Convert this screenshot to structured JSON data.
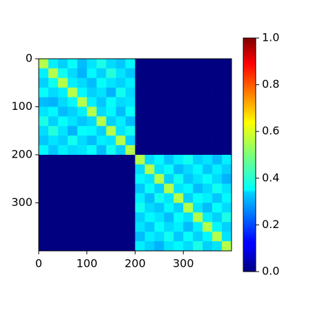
{
  "chart_data": {
    "type": "heatmap",
    "xlim": [
      0,
      400
    ],
    "ylim": [
      400,
      0
    ],
    "xticks": [
      0,
      100,
      200,
      300
    ],
    "yticks": [
      0,
      100,
      200,
      300
    ],
    "colormap": "jet",
    "clim": [
      0,
      1
    ],
    "cticks": [
      {
        "value": 0,
        "label": "0.0"
      },
      0.2,
      0.4,
      0.6,
      0.8,
      {
        "value": 1,
        "label": "1.0"
      }
    ],
    "z": [
      [
        0.55,
        0.36,
        0.33,
        0.38,
        0.31,
        0.35,
        0.4,
        0.34,
        0.32,
        0.37,
        0,
        0,
        0,
        0,
        0,
        0,
        0,
        0,
        0,
        0
      ],
      [
        0.36,
        0.55,
        0.39,
        0.34,
        0.3,
        0.37,
        0.33,
        0.41,
        0.35,
        0.32,
        0,
        0,
        0,
        0,
        0,
        0,
        0,
        0,
        0,
        0
      ],
      [
        0.33,
        0.39,
        0.55,
        0.36,
        0.34,
        0.31,
        0.38,
        0.35,
        0.33,
        0.36,
        0,
        0,
        0,
        0,
        0,
        0,
        0,
        0,
        0,
        0
      ],
      [
        0.38,
        0.34,
        0.36,
        0.55,
        0.37,
        0.33,
        0.35,
        0.3,
        0.39,
        0.34,
        0,
        0,
        0,
        0,
        0,
        0,
        0,
        0,
        0,
        0
      ],
      [
        0.31,
        0.3,
        0.34,
        0.37,
        0.55,
        0.36,
        0.32,
        0.38,
        0.34,
        0.35,
        0,
        0,
        0,
        0,
        0,
        0,
        0,
        0,
        0,
        0
      ],
      [
        0.35,
        0.37,
        0.31,
        0.33,
        0.36,
        0.55,
        0.34,
        0.37,
        0.31,
        0.38,
        0,
        0,
        0,
        0,
        0,
        0,
        0,
        0,
        0,
        0
      ],
      [
        0.4,
        0.33,
        0.38,
        0.35,
        0.32,
        0.34,
        0.55,
        0.33,
        0.36,
        0.31,
        0,
        0,
        0,
        0,
        0,
        0,
        0,
        0,
        0,
        0
      ],
      [
        0.34,
        0.41,
        0.35,
        0.3,
        0.38,
        0.37,
        0.33,
        0.55,
        0.35,
        0.39,
        0,
        0,
        0,
        0,
        0,
        0,
        0,
        0,
        0,
        0
      ],
      [
        0.32,
        0.35,
        0.33,
        0.39,
        0.34,
        0.31,
        0.36,
        0.35,
        0.55,
        0.33,
        0,
        0,
        0,
        0,
        0,
        0,
        0,
        0,
        0,
        0
      ],
      [
        0.37,
        0.32,
        0.36,
        0.34,
        0.35,
        0.38,
        0.31,
        0.39,
        0.33,
        0.55,
        0,
        0,
        0,
        0,
        0,
        0,
        0,
        0,
        0,
        0
      ],
      [
        0,
        0,
        0,
        0,
        0,
        0,
        0,
        0,
        0,
        0,
        0.55,
        0.34,
        0.37,
        0.32,
        0.36,
        0.39,
        0.33,
        0.35,
        0.31,
        0.36
      ],
      [
        0,
        0,
        0,
        0,
        0,
        0,
        0,
        0,
        0,
        0,
        0.34,
        0.55,
        0.35,
        0.38,
        0.31,
        0.34,
        0.37,
        0.32,
        0.36,
        0.33
      ],
      [
        0,
        0,
        0,
        0,
        0,
        0,
        0,
        0,
        0,
        0,
        0.37,
        0.35,
        0.55,
        0.33,
        0.39,
        0.32,
        0.35,
        0.38,
        0.34,
        0.3
      ],
      [
        0,
        0,
        0,
        0,
        0,
        0,
        0,
        0,
        0,
        0,
        0.32,
        0.38,
        0.33,
        0.55,
        0.35,
        0.37,
        0.31,
        0.34,
        0.39,
        0.35
      ],
      [
        0,
        0,
        0,
        0,
        0,
        0,
        0,
        0,
        0,
        0,
        0.36,
        0.31,
        0.39,
        0.35,
        0.55,
        0.33,
        0.38,
        0.36,
        0.32,
        0.37
      ],
      [
        0,
        0,
        0,
        0,
        0,
        0,
        0,
        0,
        0,
        0,
        0.39,
        0.34,
        0.32,
        0.37,
        0.33,
        0.55,
        0.35,
        0.31,
        0.38,
        0.34
      ],
      [
        0,
        0,
        0,
        0,
        0,
        0,
        0,
        0,
        0,
        0,
        0.33,
        0.37,
        0.35,
        0.31,
        0.38,
        0.35,
        0.55,
        0.36,
        0.33,
        0.4
      ],
      [
        0,
        0,
        0,
        0,
        0,
        0,
        0,
        0,
        0,
        0,
        0.35,
        0.32,
        0.38,
        0.34,
        0.36,
        0.31,
        0.36,
        0.55,
        0.37,
        0.33
      ],
      [
        0,
        0,
        0,
        0,
        0,
        0,
        0,
        0,
        0,
        0,
        0.31,
        0.36,
        0.34,
        0.39,
        0.32,
        0.38,
        0.33,
        0.37,
        0.55,
        0.35
      ],
      [
        0,
        0,
        0,
        0,
        0,
        0,
        0,
        0,
        0,
        0,
        0.36,
        0.33,
        0.3,
        0.35,
        0.37,
        0.34,
        0.4,
        0.33,
        0.35,
        0.55
      ]
    ]
  }
}
